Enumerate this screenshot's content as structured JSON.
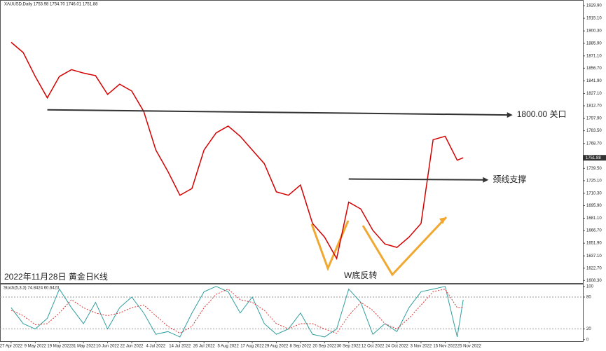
{
  "chart_data": [
    {
      "type": "line",
      "header": "XAUUSD,Daily 1753.98 1754.70 1746.01 1751.88",
      "title": "2022年11月28日 黄金日K线",
      "x": [
        0,
        4,
        8,
        12,
        16,
        20,
        24,
        28,
        32,
        36,
        40,
        44,
        48,
        52,
        56,
        60,
        64,
        68,
        72,
        76,
        80,
        84,
        88,
        92,
        96,
        100,
        104,
        108,
        112,
        116,
        120,
        124,
        128,
        132,
        136,
        140,
        144,
        148,
        150
      ],
      "series": [
        {
          "color": "#d40000",
          "values": [
            1887,
            1875,
            1847,
            1822,
            1847,
            1855,
            1851,
            1848,
            1826,
            1838,
            1830,
            1806,
            1761,
            1736,
            1708,
            1716,
            1761,
            1781,
            1789,
            1777,
            1761,
            1745,
            1712,
            1708,
            1720,
            1675,
            1659,
            1634,
            1700,
            1692,
            1667,
            1651,
            1647,
            1659,
            1675,
            1773,
            1777,
            1749,
            1751.88
          ]
        }
      ],
      "last_price": 1751.88,
      "xlim": [
        -3.7,
        189.7
      ],
      "xticks": [
        {
          "value": 0,
          "label": "27 Apr 2022"
        },
        {
          "value": 8,
          "label": "9 May 2022"
        },
        {
          "value": 16,
          "label": "19 May 2022"
        },
        {
          "value": 24,
          "label": "31 May 2022"
        },
        {
          "value": 32,
          "label": "10 Jun 2022"
        },
        {
          "value": 40,
          "label": "22 Jun 2022"
        },
        {
          "value": 48,
          "label": "4 Jul 2022"
        },
        {
          "value": 56,
          "label": "14 Jul 2022"
        },
        {
          "value": 64,
          "label": "26 Jul 2022"
        },
        {
          "value": 72,
          "label": "5 Aug 2022"
        },
        {
          "value": 80,
          "label": "17 Aug 2022"
        },
        {
          "value": 88,
          "label": "29 Aug 2022"
        },
        {
          "value": 96,
          "label": "8 Sep 2022"
        },
        {
          "value": 104,
          "label": "20 Sep 2022"
        },
        {
          "value": 112,
          "label": "30 Sep 2022"
        },
        {
          "value": 120,
          "label": "12 Oct 2022"
        },
        {
          "value": 128,
          "label": "24 Oct 2022"
        },
        {
          "value": 136,
          "label": "3 Nov 2022"
        },
        {
          "value": 144,
          "label": "15 Nov 2022"
        },
        {
          "value": 152,
          "label": "25 Nov 2022"
        }
      ],
      "ylim": [
        1605.3,
        1936.5
      ],
      "yticks": [
        {
          "value": 1608.3,
          "label": "1608.30"
        },
        {
          "value": 1622.7,
          "label": "1622.70"
        },
        {
          "value": 1637.1,
          "label": "1637.10"
        },
        {
          "value": 1651.9,
          "label": "1651.90"
        },
        {
          "value": 1666.7,
          "label": "1666.70"
        },
        {
          "value": 1681.1,
          "label": "1681.10"
        },
        {
          "value": 1695.9,
          "label": "1695.90"
        },
        {
          "value": 1710.3,
          "label": "1710.30"
        },
        {
          "value": 1725.1,
          "label": "1725.10"
        },
        {
          "value": 1739.5,
          "label": "1739.50"
        },
        {
          "value": 1768.7,
          "label": "1768.70"
        },
        {
          "value": 1783.5,
          "label": "1783.50"
        },
        {
          "value": 1797.9,
          "label": "1797.90"
        },
        {
          "value": 1812.7,
          "label": "1812.70"
        },
        {
          "value": 1827.1,
          "label": "1827.10"
        },
        {
          "value": 1841.9,
          "label": "1841.90"
        },
        {
          "value": 1856.7,
          "label": "1856.70"
        },
        {
          "value": 1871.1,
          "label": "1871.10"
        },
        {
          "value": 1885.9,
          "label": "1885.90"
        },
        {
          "value": 1900.3,
          "label": "1900.30"
        },
        {
          "value": 1915.1,
          "label": "1915.10"
        },
        {
          "value": 1929.9,
          "label": "1929.90"
        }
      ],
      "annotations": [
        {
          "text": "1800.00 关口",
          "x": [
            12,
            165
          ],
          "y": [
            1808,
            1802
          ]
        },
        {
          "text": "颈线支撑",
          "x": [
            112,
            157
          ],
          "y": [
            1727,
            1726
          ]
        },
        {
          "text": "W底反转"
        }
      ]
    },
    {
      "type": "line",
      "title": "Stoch(5,3,3) 74.8424 60.6423",
      "x": [
        0,
        4,
        8,
        12,
        16,
        20,
        24,
        28,
        32,
        36,
        40,
        44,
        48,
        52,
        56,
        60,
        64,
        68,
        72,
        76,
        80,
        84,
        88,
        92,
        96,
        100,
        104,
        108,
        112,
        116,
        120,
        124,
        128,
        132,
        136,
        140,
        144,
        148,
        150
      ],
      "series": [
        {
          "color": "#2f9e9e",
          "values": [
            60,
            30,
            20,
            40,
            95,
            60,
            30,
            70,
            20,
            60,
            80,
            50,
            10,
            15,
            5,
            50,
            90,
            100,
            90,
            50,
            80,
            30,
            10,
            20,
            50,
            10,
            5,
            20,
            95,
            70,
            10,
            30,
            15,
            60,
            90,
            95,
            100,
            5,
            75
          ]
        },
        {
          "color": "#e03030",
          "values": [
            55,
            45,
            28,
            30,
            50,
            75,
            60,
            50,
            45,
            50,
            60,
            65,
            45,
            25,
            12,
            25,
            60,
            85,
            95,
            75,
            70,
            55,
            30,
            20,
            30,
            30,
            20,
            12,
            45,
            70,
            55,
            30,
            20,
            40,
            65,
            90,
            95,
            60,
            61
          ]
        }
      ],
      "ylim": [
        -3,
        105
      ],
      "yticks": [
        0,
        20,
        80,
        100
      ]
    }
  ]
}
